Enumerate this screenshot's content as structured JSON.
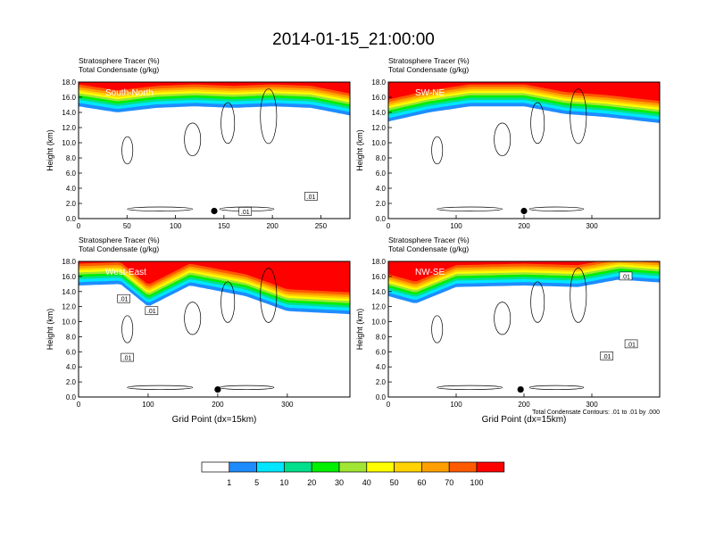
{
  "title": "2014-01-15_21:00:00",
  "palette": [
    "#ffffff",
    "#1e8cff",
    "#00e6ff",
    "#00e08c",
    "#00f000",
    "#a0e632",
    "#ffff00",
    "#ffd200",
    "#ffa000",
    "#ff5a00",
    "#ff0000"
  ],
  "chart_data": [
    {
      "type": "heatmap",
      "line1": "Stratosphere Tracer   (%)",
      "line2": "Total Condensate   (g/kg)",
      "panel_label": "South-North",
      "ylabel": "Height (km)",
      "xlabel": "",
      "xlim": [
        0,
        280
      ],
      "ylim": [
        0,
        18
      ],
      "xticks": [
        0,
        50,
        100,
        150,
        200,
        250
      ],
      "yticks": [
        "0.0",
        "2.0",
        "4.0",
        "6.0",
        "8.0",
        "10.0",
        "12.0",
        "14.0",
        "16.0",
        "18.0"
      ],
      "tracer_band": {
        "x": [
          0,
          40,
          80,
          120,
          160,
          200,
          240,
          280
        ],
        "base_km": [
          14.8,
          14.0,
          14.6,
          14.8,
          14.6,
          14.8,
          14.6,
          13.6
        ]
      },
      "contour_labels": [
        {
          "text": ".01",
          "x": 172,
          "y": 0.9
        },
        {
          "text": ".01",
          "x": 240,
          "y": 2.9
        }
      ],
      "marker": {
        "x": 140,
        "y": 1.0
      }
    },
    {
      "type": "heatmap",
      "line1": "Stratosphere Tracer   (%)",
      "line2": "Total Condensate   (g/kg)",
      "panel_label": "SW-NE",
      "ylabel": "Height (km)",
      "xlabel": "",
      "xlim": [
        0,
        400
      ],
      "ylim": [
        0,
        18
      ],
      "xticks": [
        0,
        100,
        200,
        300
      ],
      "yticks": [
        "0.0",
        "2.0",
        "4.0",
        "6.0",
        "8.0",
        "10.0",
        "12.0",
        "14.0",
        "16.0",
        "18.0"
      ],
      "tracer_band": {
        "x": [
          0,
          60,
          120,
          200,
          260,
          320,
          400
        ],
        "base_km": [
          12.8,
          14.0,
          14.8,
          14.8,
          13.8,
          13.4,
          12.6
        ]
      },
      "contour_labels": [],
      "marker": {
        "x": 200,
        "y": 1.0
      }
    },
    {
      "type": "heatmap",
      "line1": "Stratosphere Tracer   (%)",
      "line2": "Total Condensate   (g/kg)",
      "panel_label": "West-East",
      "ylabel": "Height (km)",
      "xlabel": "Grid Point (dx=15km)",
      "xlim": [
        0,
        390
      ],
      "ylim": [
        0,
        18
      ],
      "xticks": [
        0,
        100,
        200,
        300
      ],
      "yticks": [
        "0.0",
        "2.0",
        "4.0",
        "6.0",
        "8.0",
        "10.0",
        "12.0",
        "14.0",
        "16.0",
        "18.0"
      ],
      "tracer_band": {
        "x": [
          0,
          60,
          100,
          160,
          240,
          300,
          390
        ],
        "base_km": [
          14.8,
          15.0,
          12.0,
          14.8,
          13.4,
          11.4,
          11.0
        ]
      },
      "contour_labels": [
        {
          "text": ".01",
          "x": 65,
          "y": 13.0
        },
        {
          "text": ".01",
          "x": 105,
          "y": 11.4
        },
        {
          "text": ".01",
          "x": 70,
          "y": 5.2
        }
      ],
      "marker": {
        "x": 200,
        "y": 1.0
      }
    },
    {
      "type": "heatmap",
      "line1": "Stratosphere Tracer   (%)",
      "line2": "Total Condensate   (g/kg)",
      "panel_label": "NW-SE",
      "ylabel": "Height (km)",
      "xlabel": "Grid Point (dx=15km)",
      "xlim": [
        0,
        400
      ],
      "ylim": [
        0,
        18
      ],
      "xticks": [
        0,
        100,
        200,
        300
      ],
      "yticks": [
        "0.0",
        "2.0",
        "4.0",
        "6.0",
        "8.0",
        "10.0",
        "12.0",
        "14.0",
        "16.0",
        "18.0"
      ],
      "tracer_band": {
        "x": [
          0,
          40,
          100,
          200,
          280,
          340,
          400
        ],
        "base_km": [
          13.4,
          12.4,
          14.6,
          14.8,
          14.6,
          15.6,
          15.2
        ]
      },
      "contour_labels": [
        {
          "text": ".01",
          "x": 350,
          "y": 16.0
        },
        {
          "text": ".01",
          "x": 358,
          "y": 7.0
        },
        {
          "text": ".01",
          "x": 322,
          "y": 5.4
        }
      ],
      "marker": {
        "x": 195,
        "y": 1.0
      },
      "footnote": "Total Condensate Contours: .01 to .01 by .000"
    }
  ],
  "colorbar": {
    "labels": [
      "1",
      "5",
      "10",
      "20",
      "30",
      "40",
      "50",
      "60",
      "70",
      "100"
    ],
    "colors": [
      "#ffffff",
      "#1e8cff",
      "#00e6ff",
      "#00e08c",
      "#00f000",
      "#a0e632",
      "#ffff00",
      "#ffd200",
      "#ffa000",
      "#ff5a00",
      "#ff0000"
    ]
  }
}
